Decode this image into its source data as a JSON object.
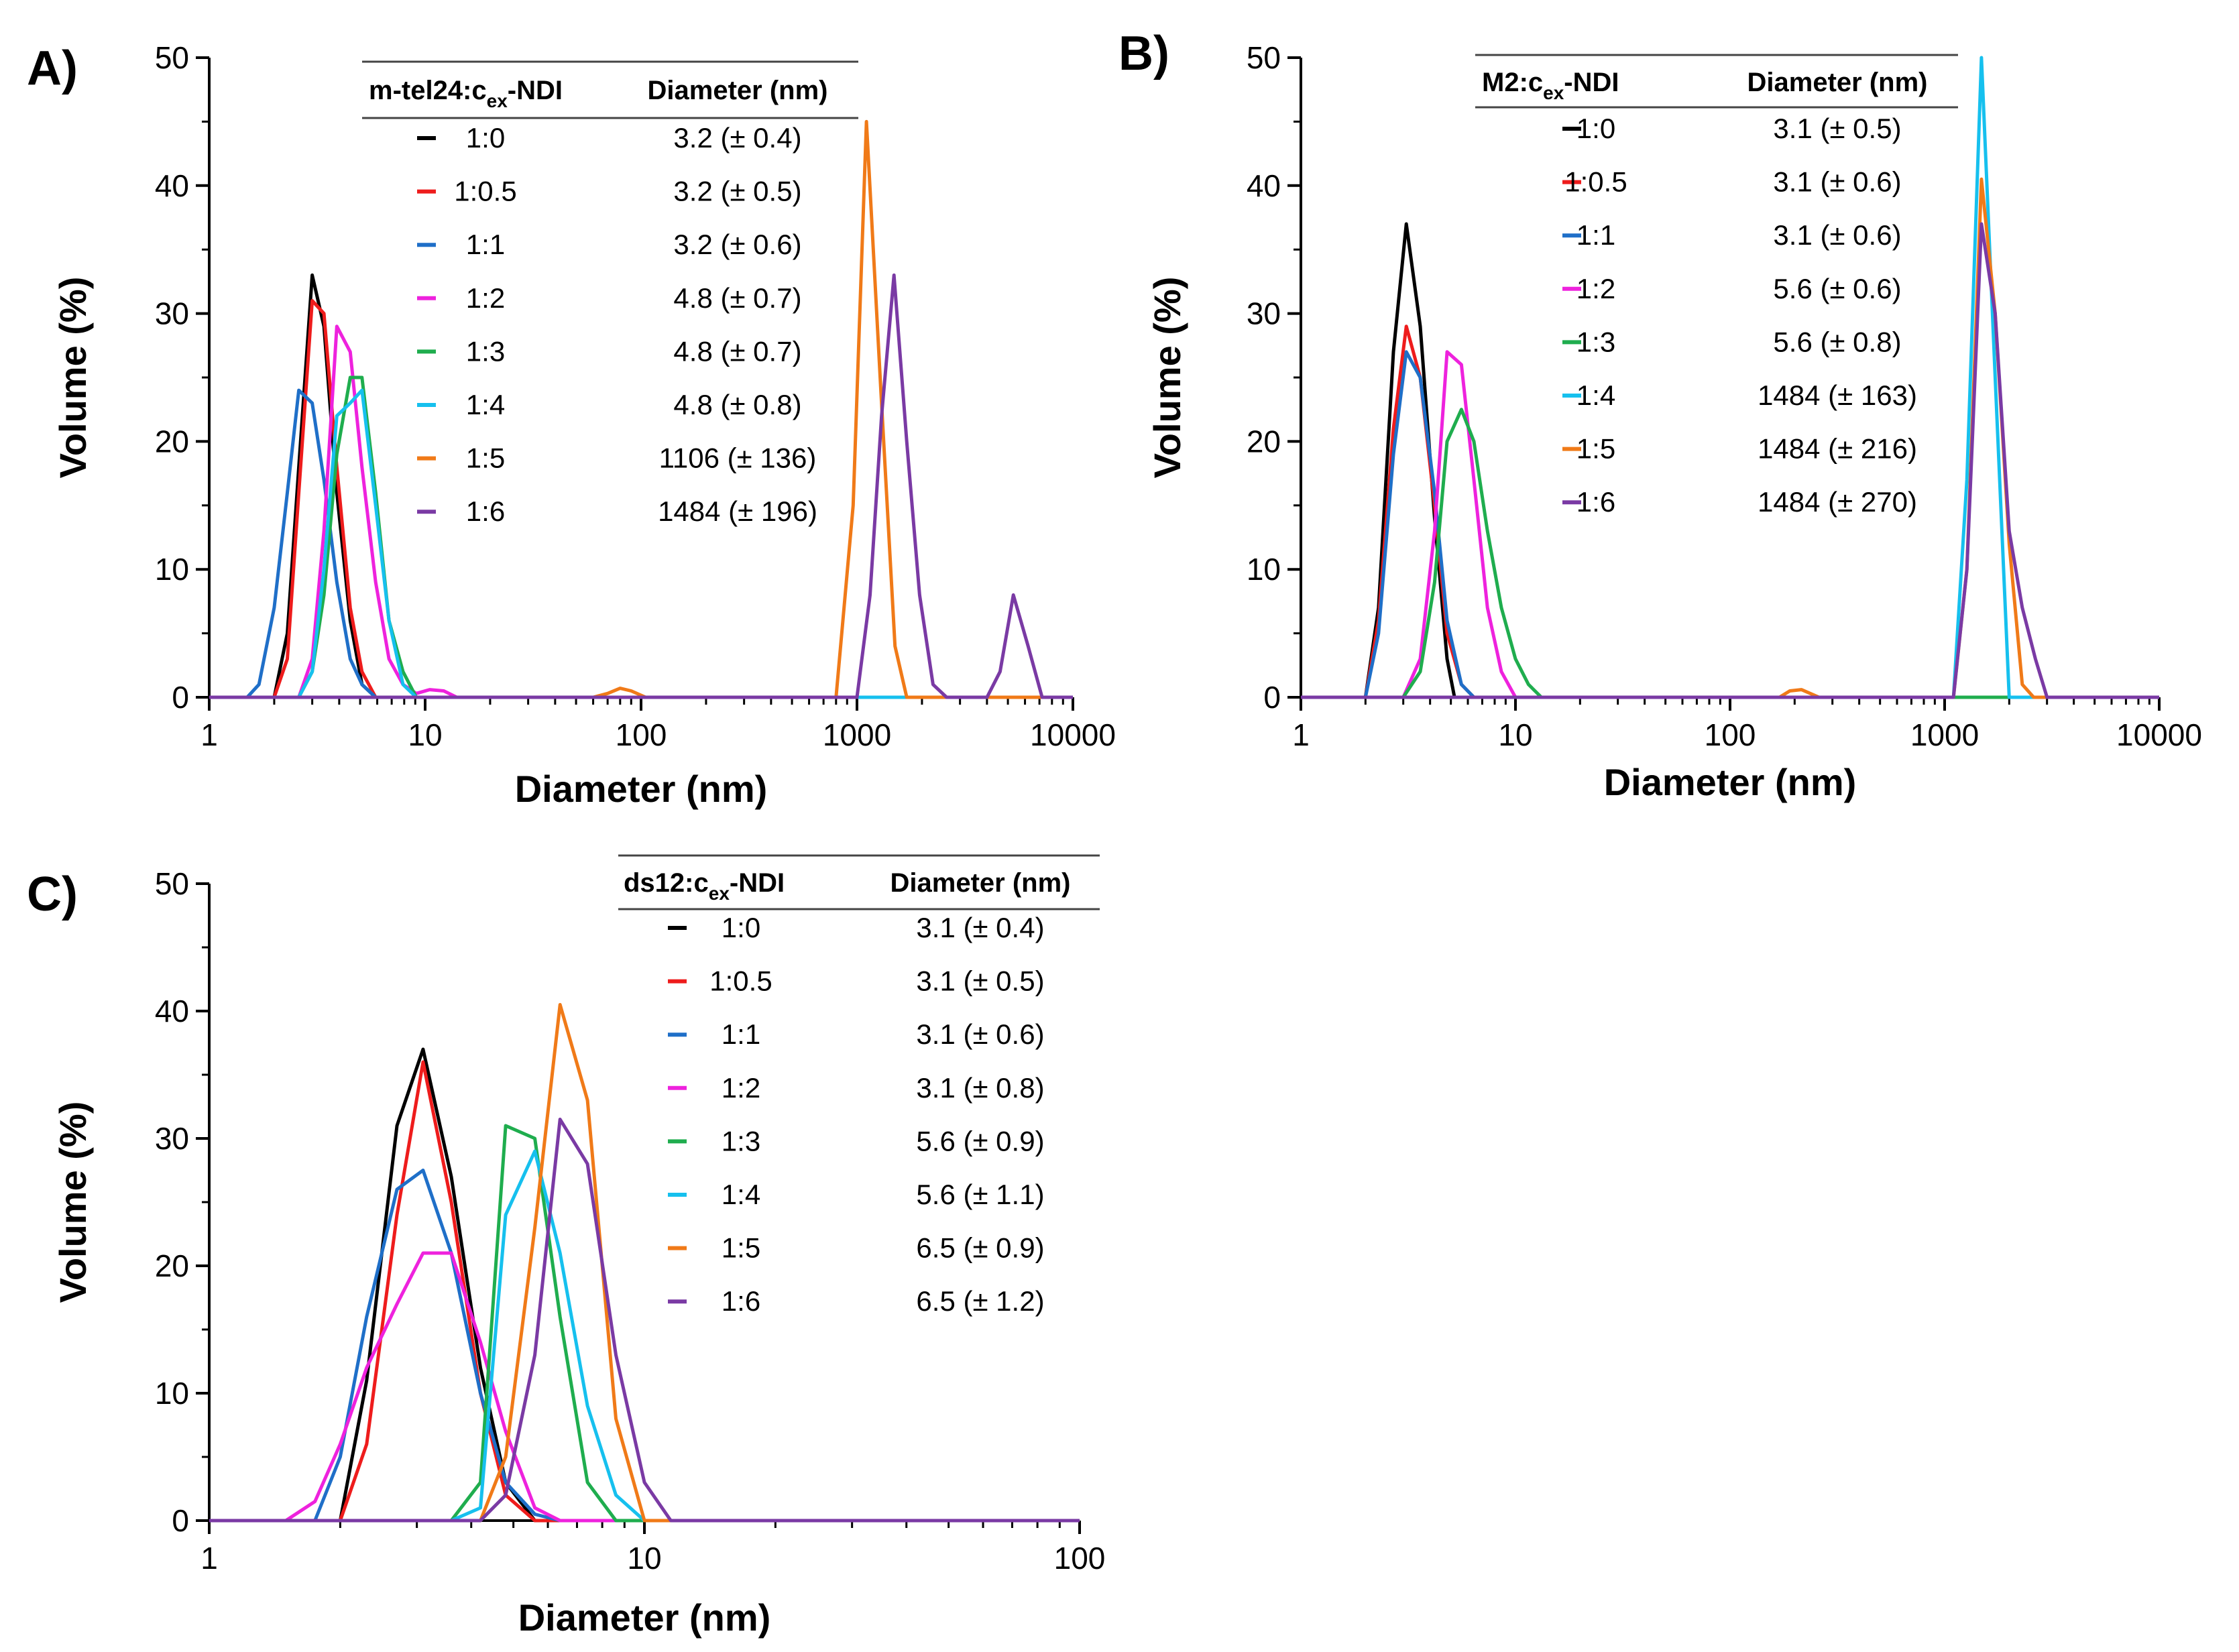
{
  "figure": {
    "panels": [
      "A)",
      "B)",
      "C)"
    ]
  },
  "colors": {
    "1:0": "#000000",
    "1:0.5": "#ee1c1c",
    "1:1": "#1f6fc8",
    "1:2": "#ee22dd",
    "1:3": "#1fad4e",
    "1:4": "#16c0ee",
    "1:5": "#f07a18",
    "1:6": "#7a3aa4"
  },
  "chart_data": [
    {
      "type": "line",
      "panel_label": "A)",
      "title": "",
      "xlabel": "Diameter (nm)",
      "ylabel": "Volume (%)",
      "xscale": "log",
      "xlim": [
        1,
        10000
      ],
      "ylim": [
        0,
        50
      ],
      "x_ticks": [
        "1",
        "10",
        "100",
        "1000",
        "10000"
      ],
      "y_ticks": [
        "0",
        "10",
        "20",
        "30",
        "40",
        "50"
      ],
      "legend": {
        "position": "top-center",
        "ratio_header_main": "m-tel24:c",
        "ratio_header_sub": "ex",
        "ratio_header_tail": "-NDI",
        "diameter_header": "Diameter (nm)",
        "entries": [
          {
            "ratio": "1:0",
            "diameter": "3.2 (± 0.4)"
          },
          {
            "ratio": "1:0.5",
            "diameter": "3.2 (± 0.5)"
          },
          {
            "ratio": "1:1",
            "diameter": "3.2 (± 0.6)"
          },
          {
            "ratio": "1:2",
            "diameter": "4.8 (± 0.7)"
          },
          {
            "ratio": "1:3",
            "diameter": "4.8 (± 0.7)"
          },
          {
            "ratio": "1:4",
            "diameter": "4.8 (± 0.8)"
          },
          {
            "ratio": "1:5",
            "diameter": "1106 (± 136)"
          },
          {
            "ratio": "1:6",
            "diameter": "1484 (± 196)"
          }
        ]
      },
      "series": [
        {
          "name": "1:0",
          "x": [
            1,
            2.0,
            2.3,
            2.6,
            3.0,
            3.4,
            3.9,
            4.5,
            5.1,
            5.9,
            7,
            10000
          ],
          "y": [
            0,
            0,
            5,
            18,
            33,
            29,
            16,
            6,
            1,
            0,
            0,
            0
          ]
        },
        {
          "name": "1:0.5",
          "x": [
            1,
            2.0,
            2.3,
            2.6,
            3.0,
            3.4,
            3.9,
            4.5,
            5.1,
            5.9,
            7,
            10000
          ],
          "y": [
            0,
            0,
            3,
            16,
            31,
            30,
            18,
            7,
            2,
            0,
            0,
            0
          ]
        },
        {
          "name": "1:1",
          "x": [
            1,
            1.5,
            1.7,
            2.0,
            2.3,
            2.6,
            3.0,
            3.4,
            3.9,
            4.5,
            5.1,
            5.9,
            7,
            10000
          ],
          "y": [
            0,
            0,
            1,
            7,
            16,
            24,
            23,
            17,
            9,
            3,
            1,
            0,
            0,
            0
          ]
        },
        {
          "name": "1:2",
          "x": [
            1,
            2.6,
            3.0,
            3.4,
            3.9,
            4.5,
            5.1,
            5.9,
            6.8,
            7.9,
            9.1,
            10.5,
            12.2,
            14,
            10000
          ],
          "y": [
            0,
            0,
            3,
            13,
            29,
            27,
            18,
            9,
            3,
            1,
            0.3,
            0.6,
            0.5,
            0,
            0
          ]
        },
        {
          "name": "1:3",
          "x": [
            1,
            2.6,
            3.0,
            3.4,
            3.9,
            4.5,
            5.1,
            5.9,
            6.8,
            7.9,
            9.1,
            10000
          ],
          "y": [
            0,
            0,
            2,
            8,
            19,
            25,
            25,
            16,
            6,
            2,
            0,
            0
          ]
        },
        {
          "name": "1:4",
          "x": [
            1,
            2.6,
            3.0,
            3.4,
            3.9,
            4.5,
            5.1,
            5.9,
            6.8,
            7.9,
            9.1,
            10000
          ],
          "y": [
            0,
            0,
            2,
            10,
            22,
            23,
            24,
            15,
            6,
            1,
            0,
            0
          ]
        },
        {
          "name": "1:5",
          "x": [
            1,
            60,
            70,
            80,
            90,
            105,
            800,
            960,
            1106,
            1290,
            1500,
            1700,
            10000
          ],
          "y": [
            0,
            0,
            0.3,
            0.7,
            0.5,
            0,
            0,
            15,
            45,
            24,
            4,
            0,
            0
          ]
        },
        {
          "name": "1:6",
          "x": [
            1,
            1000,
            1150,
            1300,
            1484,
            1700,
            1950,
            2250,
            2600,
            4000,
            4600,
            5300,
            6200,
            7200,
            10000
          ],
          "y": [
            0,
            0,
            8,
            22,
            33,
            20,
            8,
            1,
            0,
            0,
            2,
            8,
            4,
            0,
            0
          ]
        }
      ]
    },
    {
      "type": "line",
      "panel_label": "B)",
      "title": "",
      "xlabel": "Diameter (nm)",
      "ylabel": "Volume (%)",
      "xscale": "log",
      "xlim": [
        1,
        10000
      ],
      "ylim": [
        0,
        50
      ],
      "x_ticks": [
        "1",
        "10",
        "100",
        "1000",
        "10000"
      ],
      "y_ticks": [
        "0",
        "10",
        "20",
        "30",
        "40",
        "50"
      ],
      "legend": {
        "position": "top-center",
        "ratio_header_main": "M2:c",
        "ratio_header_sub": "ex",
        "ratio_header_tail": "-NDI",
        "diameter_header": "Diameter (nm)",
        "entries": [
          {
            "ratio": "1:0",
            "diameter": "3.1 (± 0.5)"
          },
          {
            "ratio": "1:0.5",
            "diameter": "3.1 (± 0.6)"
          },
          {
            "ratio": "1:1",
            "diameter": "3.1 (± 0.6)"
          },
          {
            "ratio": "1:2",
            "diameter": "5.6 (± 0.6)"
          },
          {
            "ratio": "1:3",
            "diameter": "5.6 (± 0.8)"
          },
          {
            "ratio": "1:4",
            "diameter": "1484 (± 163)"
          },
          {
            "ratio": "1:5",
            "diameter": "1484 (± 216)"
          },
          {
            "ratio": "1:6",
            "diameter": "1484 (± 270)"
          }
        ]
      },
      "series": [
        {
          "name": "1:0",
          "x": [
            1,
            2.0,
            2.3,
            2.7,
            3.1,
            3.6,
            4.2,
            4.8,
            5.2,
            10000
          ],
          "y": [
            0,
            0,
            7,
            27,
            37,
            29,
            14,
            3,
            0,
            0
          ]
        },
        {
          "name": "1:0.5",
          "x": [
            1,
            2.0,
            2.3,
            2.7,
            3.1,
            3.6,
            4.2,
            4.8,
            5.6,
            6.4,
            10000
          ],
          "y": [
            0,
            0,
            6,
            21,
            29,
            25,
            15,
            5,
            1,
            0,
            0
          ]
        },
        {
          "name": "1:1",
          "x": [
            1,
            2.0,
            2.3,
            2.7,
            3.1,
            3.6,
            4.2,
            4.8,
            5.6,
            6.4,
            10000
          ],
          "y": [
            0,
            0,
            5,
            19,
            27,
            25,
            16,
            6,
            1,
            0,
            0
          ]
        },
        {
          "name": "1:2",
          "x": [
            1,
            3.0,
            3.6,
            4.2,
            4.8,
            5.6,
            6.4,
            7.4,
            8.6,
            10.0,
            10000
          ],
          "y": [
            0,
            0,
            3,
            13,
            27,
            26,
            17,
            7,
            2,
            0,
            0
          ]
        },
        {
          "name": "1:3",
          "x": [
            1,
            3.0,
            3.6,
            4.2,
            4.8,
            5.6,
            6.4,
            7.4,
            8.6,
            10.0,
            11.5,
            13.2,
            15,
            10000
          ],
          "y": [
            0,
            0,
            2,
            9,
            20,
            22.5,
            20,
            13,
            7,
            3,
            1,
            0,
            0,
            0
          ]
        },
        {
          "name": "1:4",
          "x": [
            1,
            1100,
            1270,
            1484,
            1720,
            2000,
            10000
          ],
          "y": [
            0,
            0,
            17,
            50,
            25,
            0,
            0
          ]
        },
        {
          "name": "1:5",
          "x": [
            1,
            170,
            190,
            215,
            260,
            1100,
            1270,
            1484,
            1720,
            2000,
            2300,
            2600,
            10000
          ],
          "y": [
            0,
            0,
            0.5,
            0.6,
            0,
            0,
            10,
            40.5,
            30,
            12,
            1,
            0,
            0
          ]
        },
        {
          "name": "1:6",
          "x": [
            1,
            1100,
            1270,
            1484,
            1720,
            2000,
            2300,
            2650,
            3000,
            10000
          ],
          "y": [
            0,
            0,
            10,
            37,
            30,
            13,
            7,
            3,
            0,
            0
          ]
        }
      ]
    },
    {
      "type": "line",
      "panel_label": "C)",
      "title": "",
      "xlabel": "Diameter (nm)",
      "ylabel": "Volume (%)",
      "xscale": "log",
      "xlim": [
        1,
        100
      ],
      "ylim": [
        0,
        50
      ],
      "x_ticks": [
        "1",
        "10",
        "100"
      ],
      "y_ticks": [
        "0",
        "10",
        "20",
        "30",
        "40",
        "50"
      ],
      "legend": {
        "position": "top-right",
        "ratio_header_main": "ds12:c",
        "ratio_header_sub": "ex",
        "ratio_header_tail": "-NDI",
        "diameter_header": "Diameter (nm)",
        "entries": [
          {
            "ratio": "1:0",
            "diameter": "3.1 (± 0.4)"
          },
          {
            "ratio": "1:0.5",
            "diameter": "3.1 (± 0.5)"
          },
          {
            "ratio": "1:1",
            "diameter": "3.1 (± 0.6)"
          },
          {
            "ratio": "1:2",
            "diameter": "3.1 (± 0.8)"
          },
          {
            "ratio": "1:3",
            "diameter": "5.6 (± 0.9)"
          },
          {
            "ratio": "1:4",
            "diameter": "5.6 (± 1.1)"
          },
          {
            "ratio": "1:5",
            "diameter": "6.5 (± 0.9)"
          },
          {
            "ratio": "1:6",
            "diameter": "6.5 (± 1.2)"
          }
        ]
      },
      "series": [
        {
          "name": "1:0",
          "x": [
            1,
            2.0,
            2.3,
            2.7,
            3.1,
            3.6,
            4.2,
            4.8,
            5.6,
            100
          ],
          "y": [
            0,
            0,
            11,
            31,
            37,
            27,
            12,
            3,
            0,
            0
          ]
        },
        {
          "name": "1:0.5",
          "x": [
            1,
            2.0,
            2.3,
            2.7,
            3.1,
            3.6,
            4.2,
            4.8,
            5.6,
            100
          ],
          "y": [
            0,
            0,
            6,
            24,
            36,
            25,
            10,
            2,
            0,
            0
          ]
        },
        {
          "name": "1:1",
          "x": [
            1,
            1.75,
            2.0,
            2.3,
            2.7,
            3.1,
            3.6,
            4.2,
            4.8,
            5.6,
            6.4,
            100
          ],
          "y": [
            0,
            0,
            5,
            16,
            26,
            27.5,
            21,
            10,
            3,
            0.5,
            0,
            0
          ]
        },
        {
          "name": "1:2",
          "x": [
            1,
            1.5,
            1.75,
            2.0,
            2.3,
            2.7,
            3.1,
            3.6,
            4.2,
            4.8,
            5.6,
            6.4,
            100
          ],
          "y": [
            0,
            0,
            1.5,
            6,
            12,
            17,
            21,
            21,
            14,
            7,
            1,
            0,
            0
          ]
        },
        {
          "name": "1:3",
          "x": [
            1,
            3.6,
            4.2,
            4.8,
            5.6,
            6.4,
            7.4,
            8.6,
            10,
            100
          ],
          "y": [
            0,
            0,
            3,
            31,
            30,
            16,
            3,
            0,
            0,
            0
          ]
        },
        {
          "name": "1:4",
          "x": [
            1,
            3.6,
            4.2,
            4.8,
            5.6,
            6.4,
            7.4,
            8.6,
            10,
            100
          ],
          "y": [
            0,
            0,
            1,
            24,
            29,
            21,
            9,
            2,
            0,
            0
          ]
        },
        {
          "name": "1:5",
          "x": [
            1,
            4.2,
            4.8,
            5.6,
            6.4,
            7.4,
            8.6,
            10,
            100
          ],
          "y": [
            0,
            0,
            5,
            23,
            40.5,
            33,
            8,
            0,
            0
          ]
        },
        {
          "name": "1:6",
          "x": [
            1,
            4.2,
            4.8,
            5.6,
            6.4,
            7.4,
            8.6,
            10,
            11.5,
            100
          ],
          "y": [
            0,
            0,
            2,
            13,
            31.5,
            28,
            13,
            3,
            0,
            0
          ]
        }
      ]
    }
  ]
}
